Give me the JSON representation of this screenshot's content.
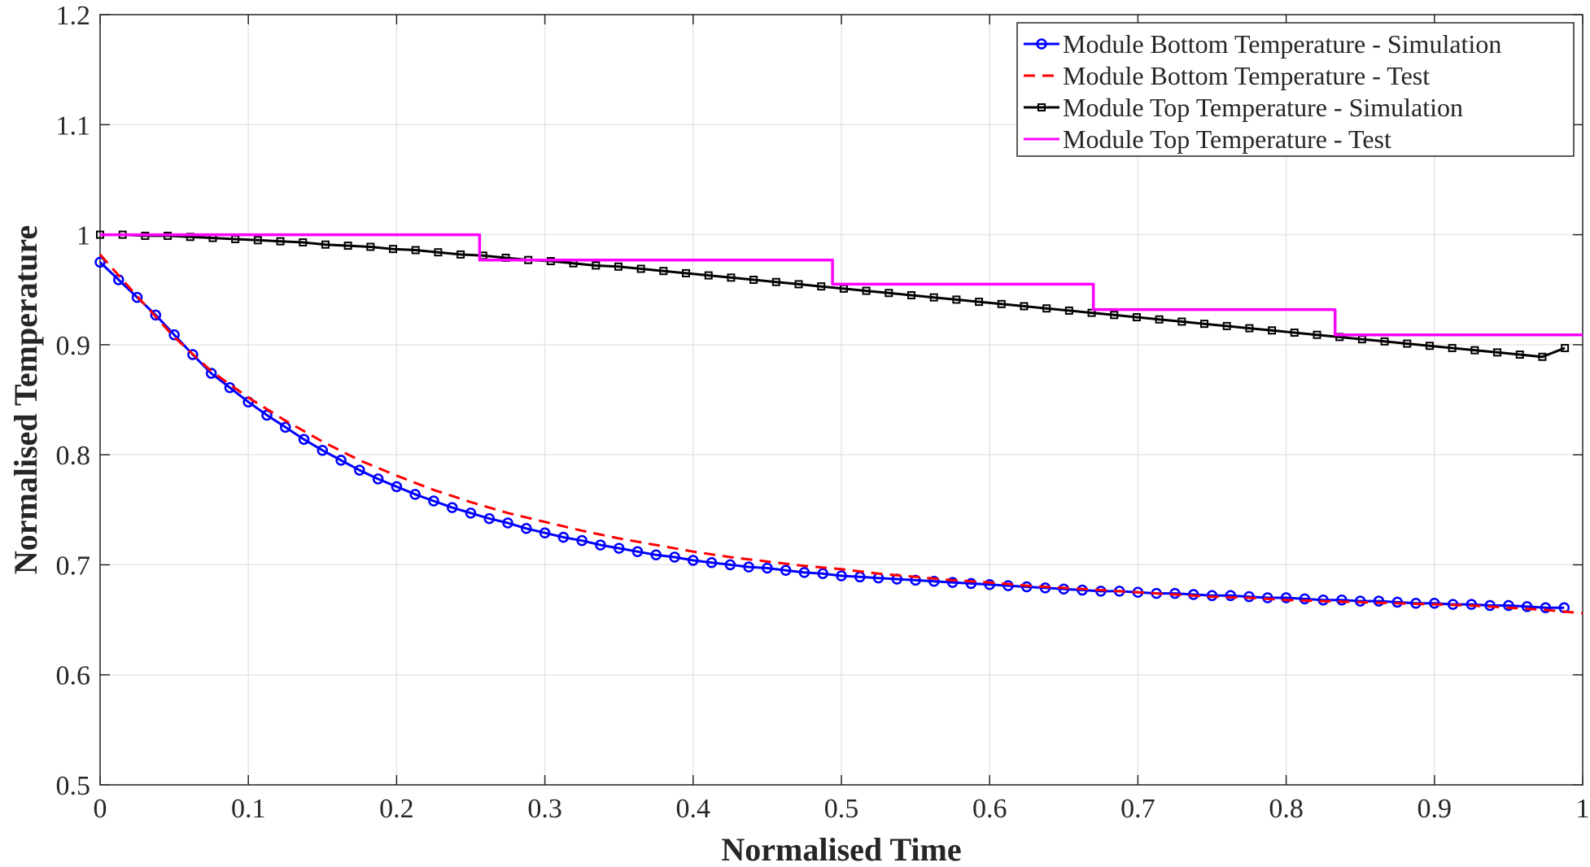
{
  "chart_data": {
    "type": "line",
    "title": "",
    "xlabel": "Normalised Time",
    "ylabel": "Normalised Temperature",
    "xlim": [
      0,
      1
    ],
    "ylim": [
      0.5,
      1.2
    ],
    "xticks": [
      0,
      0.1,
      0.2,
      0.3,
      0.4,
      0.5,
      0.6,
      0.7,
      0.8,
      0.9,
      1
    ],
    "xtick_labels": [
      "0",
      "0.1",
      "0.2",
      "0.3",
      "0.4",
      "0.5",
      "0.6",
      "0.7",
      "0.8",
      "0.9",
      "1"
    ],
    "yticks": [
      0.5,
      0.6,
      0.7,
      0.8,
      0.9,
      1.0,
      1.1,
      1.2
    ],
    "ytick_labels": [
      "0.5",
      "0.6",
      "0.7",
      "0.8",
      "0.9",
      "1",
      "1.1",
      "1.2"
    ],
    "grid": true,
    "legend_position": "top-right",
    "series": [
      {
        "name": "Module Bottom Temperature - Simulation",
        "color": "#0000ff",
        "style": "solid",
        "marker": "circle",
        "x": [
          0,
          0.0125,
          0.025,
          0.0375,
          0.05,
          0.0625,
          0.075,
          0.0875,
          0.1,
          0.1125,
          0.125,
          0.1375,
          0.15,
          0.1625,
          0.175,
          0.1875,
          0.2,
          0.2125,
          0.225,
          0.2375,
          0.25,
          0.2625,
          0.275,
          0.2875,
          0.3,
          0.3125,
          0.325,
          0.3375,
          0.35,
          0.3625,
          0.375,
          0.3875,
          0.4,
          0.4125,
          0.425,
          0.4375,
          0.45,
          0.4625,
          0.475,
          0.4875,
          0.5,
          0.5125,
          0.525,
          0.5375,
          0.55,
          0.5625,
          0.575,
          0.5875,
          0.6,
          0.6125,
          0.625,
          0.6375,
          0.65,
          0.6625,
          0.675,
          0.6875,
          0.7,
          0.7125,
          0.725,
          0.7375,
          0.75,
          0.7625,
          0.775,
          0.7875,
          0.8,
          0.8125,
          0.825,
          0.8375,
          0.85,
          0.8625,
          0.875,
          0.8875,
          0.9,
          0.9125,
          0.925,
          0.9375,
          0.95,
          0.9625,
          0.975,
          0.9875
        ],
        "y": [
          0.975,
          0.959,
          0.943,
          0.927,
          0.909,
          0.891,
          0.874,
          0.861,
          0.848,
          0.836,
          0.825,
          0.814,
          0.804,
          0.795,
          0.786,
          0.778,
          0.771,
          0.764,
          0.758,
          0.752,
          0.747,
          0.742,
          0.738,
          0.733,
          0.729,
          0.725,
          0.722,
          0.718,
          0.715,
          0.712,
          0.709,
          0.707,
          0.704,
          0.702,
          0.7,
          0.698,
          0.697,
          0.695,
          0.693,
          0.692,
          0.69,
          0.689,
          0.688,
          0.687,
          0.686,
          0.685,
          0.684,
          0.683,
          0.682,
          0.681,
          0.68,
          0.679,
          0.678,
          0.677,
          0.676,
          0.676,
          0.675,
          0.674,
          0.674,
          0.673,
          0.672,
          0.672,
          0.671,
          0.67,
          0.67,
          0.669,
          0.668,
          0.668,
          0.667,
          0.667,
          0.666,
          0.665,
          0.665,
          0.664,
          0.664,
          0.663,
          0.663,
          0.662,
          0.661,
          0.661
        ]
      },
      {
        "name": "Module Bottom Temperature - Test",
        "color": "#ff0000",
        "style": "dashed",
        "marker": "none",
        "x": [
          0,
          0.025,
          0.05,
          0.075,
          0.1,
          0.125,
          0.15,
          0.175,
          0.2,
          0.225,
          0.25,
          0.275,
          0.3,
          0.325,
          0.35,
          0.375,
          0.4,
          0.425,
          0.45,
          0.475,
          0.5,
          0.525,
          0.55,
          0.575,
          0.6,
          0.625,
          0.65,
          0.675,
          0.7,
          0.725,
          0.75,
          0.775,
          0.8,
          0.825,
          0.85,
          0.875,
          0.9,
          0.925,
          0.95,
          0.975,
          1.0
        ],
        "y": [
          0.982,
          0.944,
          0.907,
          0.876,
          0.852,
          0.831,
          0.812,
          0.795,
          0.781,
          0.768,
          0.757,
          0.747,
          0.739,
          0.731,
          0.724,
          0.718,
          0.712,
          0.707,
          0.703,
          0.699,
          0.696,
          0.692,
          0.689,
          0.686,
          0.684,
          0.681,
          0.679,
          0.677,
          0.675,
          0.673,
          0.671,
          0.67,
          0.668,
          0.667,
          0.666,
          0.665,
          0.664,
          0.663,
          0.661,
          0.659,
          0.656
        ]
      },
      {
        "name": "Module Top Temperature - Simulation",
        "color": "#000000",
        "style": "solid",
        "marker": "square",
        "x": [
          0,
          0.0152,
          0.0304,
          0.0456,
          0.0608,
          0.076,
          0.0912,
          0.1064,
          0.1216,
          0.1368,
          0.152,
          0.1672,
          0.1824,
          0.1976,
          0.2128,
          0.228,
          0.2432,
          0.2584,
          0.2736,
          0.2888,
          0.304,
          0.3192,
          0.3344,
          0.3496,
          0.3648,
          0.38,
          0.3952,
          0.4104,
          0.4256,
          0.4408,
          0.456,
          0.4712,
          0.4864,
          0.5016,
          0.5168,
          0.532,
          0.5472,
          0.5624,
          0.5776,
          0.5928,
          0.608,
          0.6232,
          0.6384,
          0.6536,
          0.6688,
          0.684,
          0.6992,
          0.7144,
          0.7296,
          0.7448,
          0.76,
          0.7752,
          0.7904,
          0.8056,
          0.8208,
          0.836,
          0.8512,
          0.8664,
          0.8816,
          0.8968,
          0.912,
          0.9272,
          0.9424,
          0.9576,
          0.9728,
          0.988
        ],
        "y": [
          1.0,
          1.0,
          0.999,
          0.999,
          0.998,
          0.997,
          0.996,
          0.995,
          0.994,
          0.993,
          0.991,
          0.99,
          0.989,
          0.987,
          0.986,
          0.984,
          0.982,
          0.981,
          0.979,
          0.977,
          0.976,
          0.974,
          0.972,
          0.971,
          0.969,
          0.967,
          0.965,
          0.963,
          0.961,
          0.959,
          0.957,
          0.955,
          0.953,
          0.951,
          0.949,
          0.947,
          0.945,
          0.943,
          0.941,
          0.939,
          0.937,
          0.935,
          0.933,
          0.931,
          0.929,
          0.927,
          0.925,
          0.923,
          0.921,
          0.919,
          0.917,
          0.915,
          0.913,
          0.911,
          0.909,
          0.907,
          0.905,
          0.903,
          0.901,
          0.899,
          0.897,
          0.895,
          0.893,
          0.891,
          0.889,
          0.897
        ]
      },
      {
        "name": "Module Top Temperature - Test",
        "color": "#ff00ff",
        "style": "solid",
        "marker": "none",
        "step": true,
        "x": [
          0,
          0.256,
          0.256,
          0.494,
          0.494,
          0.67,
          0.67,
          0.833,
          0.833,
          1.0
        ],
        "y": [
          1.0,
          1.0,
          0.977,
          0.977,
          0.955,
          0.955,
          0.932,
          0.932,
          0.909,
          0.909
        ]
      }
    ]
  }
}
